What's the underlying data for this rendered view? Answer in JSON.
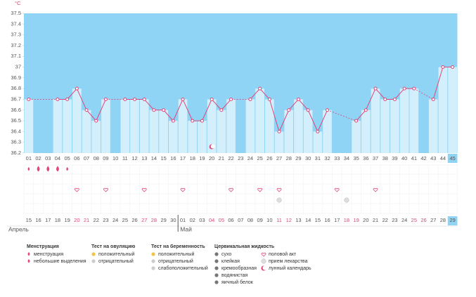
{
  "chart_data": {
    "type": "line",
    "y_label": "°C",
    "categories": [
      "01",
      "02",
      "03",
      "04",
      "05",
      "06",
      "07",
      "08",
      "09",
      "10",
      "11",
      "12",
      "13",
      "14",
      "15",
      "16",
      "17",
      "18",
      "19",
      "20",
      "21",
      "22",
      "23",
      "24",
      "25",
      "26",
      "27",
      "28",
      "29",
      "30",
      "31",
      "32",
      "33",
      "34",
      "35",
      "36",
      "37",
      "38",
      "39",
      "40",
      "41",
      "42",
      "43",
      "44",
      "45"
    ],
    "values": [
      36.7,
      null,
      null,
      36.7,
      36.7,
      36.8,
      36.6,
      36.5,
      36.7,
      null,
      36.7,
      36.7,
      36.7,
      36.6,
      36.6,
      36.5,
      36.7,
      36.5,
      36.5,
      36.7,
      36.6,
      36.7,
      null,
      36.7,
      36.8,
      36.7,
      36.4,
      36.6,
      36.7,
      36.6,
      36.4,
      36.6,
      null,
      null,
      36.5,
      36.6,
      36.8,
      36.7,
      36.7,
      36.8,
      36.8,
      null,
      36.7,
      37,
      37
    ],
    "color": "#e0457b",
    "background_color": "#8fd4f4",
    "bar_color": "#d3effb",
    "ylim": [
      36.2,
      37.5
    ],
    "yticks": [
      36.2,
      36.3,
      36.4,
      36.5,
      36.6,
      36.7,
      36.8,
      36.9,
      37,
      37.1,
      37.2,
      37.3,
      37.4,
      37.5
    ],
    "dates": [
      "15",
      "16",
      "17",
      "18",
      "19",
      "20",
      "21",
      "22",
      "23",
      "24",
      "25",
      "26",
      "27",
      "28",
      "29",
      "30",
      "01",
      "02",
      "03",
      "04",
      "05",
      "06",
      "07",
      "08",
      "09",
      "10",
      "11",
      "12",
      "13",
      "14",
      "15",
      "16",
      "17",
      "18",
      "19",
      "20",
      "21",
      "22",
      "23",
      "24",
      "25",
      "26",
      "27",
      "28",
      "29"
    ],
    "weekend": [
      false,
      false,
      false,
      false,
      false,
      true,
      true,
      false,
      false,
      false,
      false,
      false,
      true,
      true,
      false,
      false,
      false,
      false,
      false,
      true,
      true,
      false,
      false,
      false,
      false,
      false,
      true,
      true,
      false,
      false,
      false,
      false,
      false,
      true,
      true,
      false,
      false,
      false,
      false,
      false,
      true,
      true,
      false,
      false,
      false
    ],
    "months": [
      "Апрель",
      "Май"
    ],
    "highlight_last": true,
    "spotting_days": [
      "01",
      "05"
    ],
    "menstruation_days": [
      "02",
      "03",
      "04"
    ],
    "intercourse_days": [
      "06",
      "09",
      "13",
      "17",
      "22",
      "25",
      "27",
      "33",
      "37"
    ],
    "medication_days": [
      "27",
      "34"
    ],
    "lunar_days": [
      "20"
    ]
  },
  "legend": [
    {
      "title": "Менструация",
      "items": [
        "менструация",
        "небольшие выделения"
      ]
    },
    {
      "title": "Тест на овуляцию",
      "items": [
        "положительный",
        "отрицательный"
      ]
    },
    {
      "title": "Тест на беременность",
      "items": [
        "положительный",
        "отрицательный",
        "слабоположительный"
      ]
    },
    {
      "title": "Цервикальная жидкость",
      "items": [
        "сухо",
        "клейкая",
        "кремообразная",
        "водянистая",
        "яичный белок"
      ]
    },
    {
      "items": [
        "половой акт",
        "прием лекарства",
        "лунный календарь"
      ]
    }
  ]
}
